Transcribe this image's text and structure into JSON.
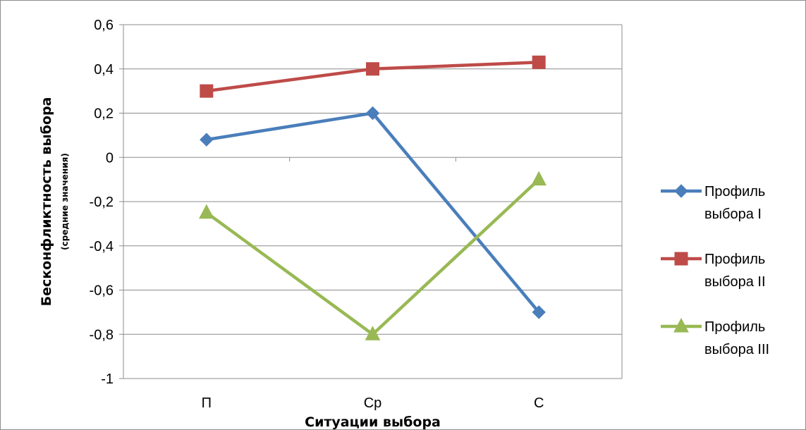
{
  "chart_data": {
    "type": "line",
    "title": "",
    "xlabel": "Ситуации выбора",
    "ylabel": "Бесконфликтность выбора",
    "ylabel_sub": "(средние значения)",
    "categories": [
      "П",
      "Ср",
      "С"
    ],
    "ylim": [
      -1,
      0.6
    ],
    "yticks": [
      -1,
      -0.8,
      -0.6,
      -0.4,
      -0.2,
      0,
      0.2,
      0.4,
      0.6
    ],
    "ytick_labels": [
      "-1",
      "-0,8",
      "-0,6",
      "-0,4",
      "-0,2",
      "0",
      "0,2",
      "0,4",
      "0,6"
    ],
    "grid": "horizontal",
    "legend_position": "right",
    "series": [
      {
        "name_line1": "Профиль",
        "name_line2": "выбора I",
        "values": [
          0.08,
          0.2,
          -0.7
        ],
        "color": "#4a7ebb",
        "marker": "diamond"
      },
      {
        "name_line1": "Профиль",
        "name_line2": "выбора II",
        "values": [
          0.3,
          0.4,
          0.43
        ],
        "color": "#be4b48",
        "marker": "square"
      },
      {
        "name_line1": "Профиль",
        "name_line2": "выбора III",
        "values": [
          -0.25,
          -0.8,
          -0.1
        ],
        "color": "#98b954",
        "marker": "triangle"
      }
    ]
  }
}
